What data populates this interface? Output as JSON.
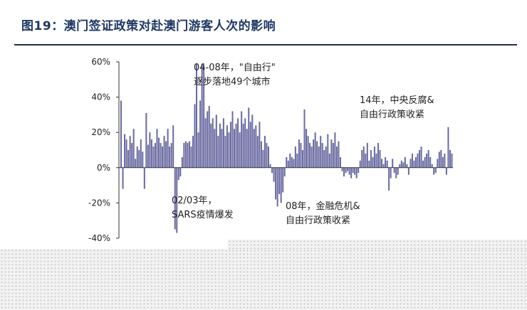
{
  "header": {
    "title": "图19：澳门签证政策对赴澳门游客人次的影响"
  },
  "annotations": [
    {
      "line1": "04-08年，\"自由行\"",
      "line2": "逐步落地49个城市"
    },
    {
      "line1": "14年，中央反腐&",
      "line2": "自由行政策收紧"
    },
    {
      "line1": "02/03年，",
      "line2": "SARS疫情爆发"
    },
    {
      "line1": "08年，金融危机&",
      "line2": "自由行政策收紧"
    }
  ],
  "chart_data": {
    "type": "bar",
    "title": "",
    "xlabel": "",
    "ylabel": "",
    "ylim": [
      -40,
      60
    ],
    "y_ticks": [
      "60%",
      "40%",
      "20%",
      "0%",
      "-20%",
      "-40%"
    ],
    "grid": false,
    "colors": {
      "bar": "#6a6aa2",
      "axis": "#333333"
    },
    "series": [
      {
        "values": [
          38,
          -12,
          19,
          16,
          10,
          18,
          14,
          22,
          5,
          12,
          10,
          16,
          9,
          -12,
          31,
          13,
          20,
          16,
          12,
          14,
          22,
          17,
          14,
          12,
          18,
          15,
          22,
          12,
          14,
          24,
          -35,
          -37,
          -7,
          -5,
          6,
          14,
          15,
          14,
          15,
          12,
          18,
          36,
          59,
          20,
          38,
          59,
          58,
          28,
          32,
          35,
          25,
          28,
          22,
          30,
          18,
          25,
          22,
          28,
          18,
          24,
          20,
          26,
          32,
          22,
          25,
          28,
          20,
          32,
          25,
          28,
          22,
          34,
          26,
          30,
          22,
          24,
          18,
          26,
          15,
          10,
          18,
          14,
          12,
          2,
          -3,
          -8,
          -18,
          -22,
          -15,
          -20,
          -14,
          -5,
          6,
          4,
          8,
          6,
          5,
          12,
          8,
          16,
          14,
          10,
          33,
          22,
          18,
          14,
          12,
          16,
          20,
          15,
          12,
          18,
          14,
          10,
          12,
          19,
          8,
          16,
          14,
          20,
          12,
          15,
          6,
          -2,
          -5,
          -3,
          -2,
          -4,
          -6,
          -3,
          -4,
          -6,
          -3,
          4,
          10,
          12,
          8,
          14,
          4,
          10,
          6,
          12,
          8,
          14,
          10,
          5,
          2,
          6,
          4,
          -13,
          -6,
          5,
          -3,
          -6,
          -4,
          2,
          4,
          3,
          6,
          2,
          -4,
          5,
          8,
          4,
          6,
          8,
          10,
          12,
          4,
          6,
          8,
          10,
          6,
          2,
          -4,
          -3,
          5,
          9,
          10,
          6,
          8,
          -4,
          23,
          10,
          8
        ]
      }
    ]
  }
}
